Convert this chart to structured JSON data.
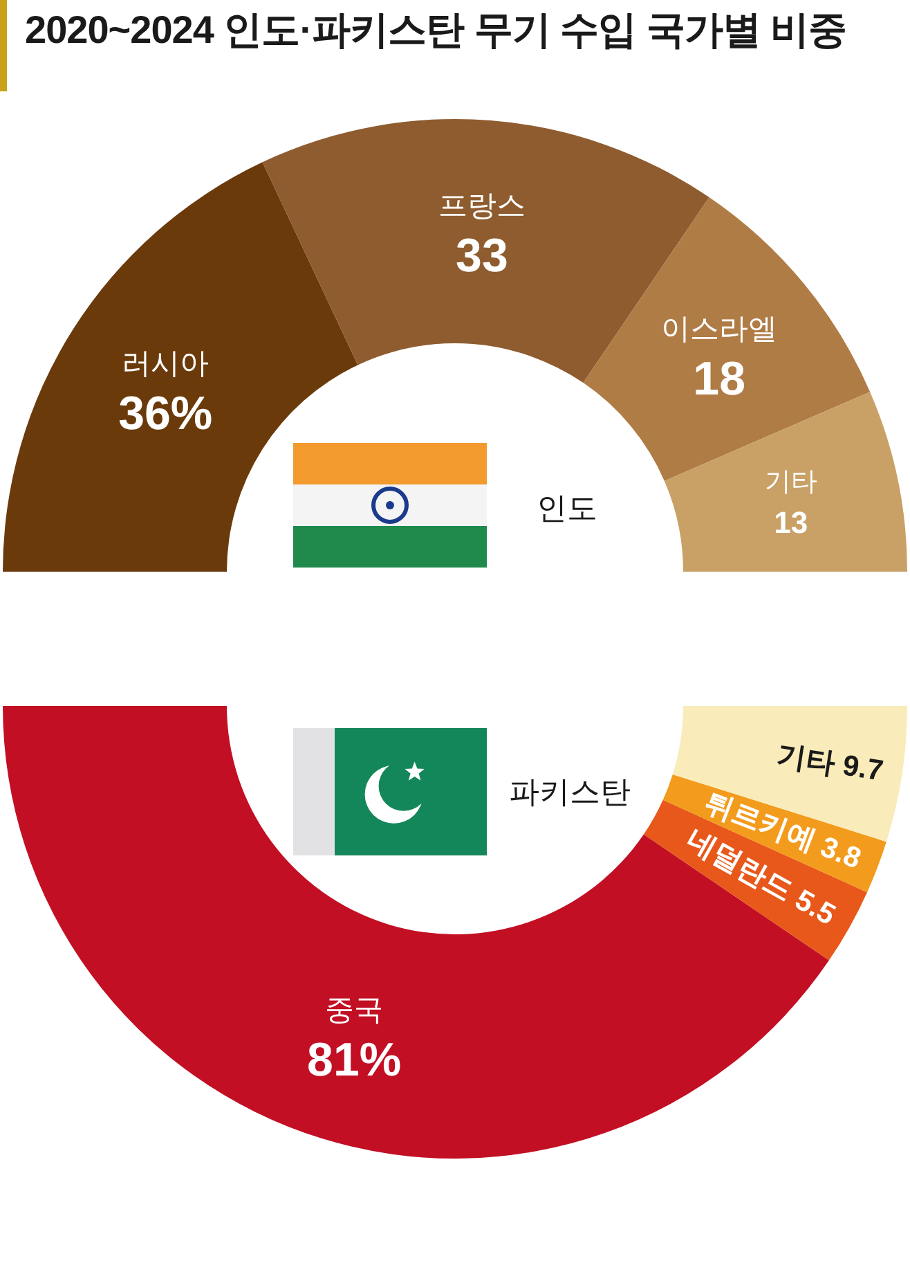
{
  "chart_data": [
    {
      "type": "donut",
      "title": "2020~2024 인도·파키스탄 무기 수입 국가별 비중",
      "categories": [
        "러시아",
        "프랑스",
        "이스라엘",
        "기타"
      ],
      "values": [
        36,
        33,
        18,
        13
      ],
      "value_labels": [
        "36%",
        "33",
        "18",
        "13"
      ],
      "colors": [
        "#6b3a0b",
        "#8f5c2f",
        "#b07c46",
        "#c9a167"
      ],
      "annotations": [
        "인도"
      ]
    },
    {
      "type": "donut",
      "categories": [
        "중국",
        "네덜란드",
        "튀르키예",
        "기타"
      ],
      "values": [
        81,
        5.5,
        3.8,
        9.7
      ],
      "value_labels": [
        "81%",
        "5.5",
        "3.8",
        "9.7"
      ],
      "colors": [
        "#c20f24",
        "#e8581b",
        "#f39b1c",
        "#f9ebba"
      ],
      "annotations": [
        "파키스탄"
      ]
    }
  ]
}
